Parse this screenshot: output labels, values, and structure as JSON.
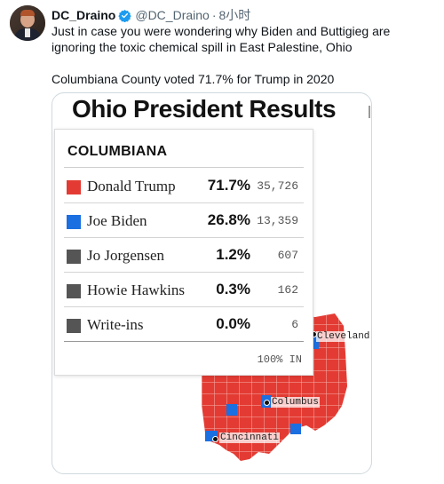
{
  "tweet": {
    "author_name": "DC_Draino",
    "author_handle": "@DC_Draino",
    "separator": "·",
    "time": "8小时",
    "text_line1": "Just in case you were wondering why Biden and Buttigieg are ignoring the toxic chemical spill in East Palestine, Ohio",
    "text_line2": "Columbiana County voted 71.7% for Trump in 2020"
  },
  "graphic": {
    "title": "Ohio President Results",
    "county": "COLUMBIANA",
    "reporting": "100% IN",
    "colors": {
      "republican": "#e33b33",
      "democrat": "#1b6fe0",
      "other": "#555555"
    },
    "results": [
      {
        "candidate": "Donald Trump",
        "pct": "71.7%",
        "votes": "35,726",
        "color": "#e33b33"
      },
      {
        "candidate": "Joe Biden",
        "pct": "26.8%",
        "votes": "13,359",
        "color": "#1b6fe0"
      },
      {
        "candidate": "Jo Jorgensen",
        "pct": "1.2%",
        "votes": "607",
        "color": "#555555"
      },
      {
        "candidate": "Howie Hawkins",
        "pct": "0.3%",
        "votes": "162",
        "color": "#555555"
      },
      {
        "candidate": "Write-ins",
        "pct": "0.0%",
        "votes": "6",
        "color": "#555555"
      }
    ],
    "cities": {
      "cleveland": "Cleveland",
      "columbus": "Columbus",
      "cincinnati": "Cincinnati"
    }
  }
}
